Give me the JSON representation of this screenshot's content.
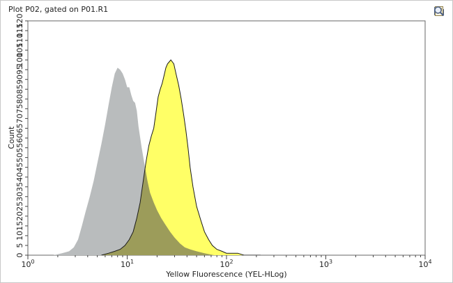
{
  "title": "Plot P02, gated on P01.R1",
  "toolbar": {
    "icons": [
      "zoom-gear-icon",
      "copy-icon",
      "color-overlay-icon",
      "export-icon",
      "print-icon",
      "page-setup-icon",
      "zoom-icon"
    ]
  },
  "colors": {
    "control_fill": "#b9bcbd",
    "sample_fill": "#ffff66",
    "sample_stroke": "#1a1a1a",
    "overlap_fill": "#9c9c5a"
  },
  "chart_data": {
    "type": "area",
    "title": "Plot P02, gated on P01.R1",
    "xlabel": "Yellow Fluorescence (YEL-HLog)",
    "ylabel": "Count",
    "xscale": "log",
    "xlim": [
      1,
      10000
    ],
    "ylim": [
      0,
      120
    ],
    "yticks": [
      0,
      5,
      10,
      15,
      20,
      25,
      30,
      35,
      40,
      45,
      50,
      55,
      60,
      65,
      70,
      75,
      80,
      85,
      90,
      95,
      100,
      105,
      110,
      115,
      120
    ],
    "xticks": [
      {
        "value": 1,
        "base": "10",
        "exp": "0"
      },
      {
        "value": 10,
        "base": "10",
        "exp": "1"
      },
      {
        "value": 100,
        "base": "10",
        "exp": "2"
      },
      {
        "value": 1000,
        "base": "10",
        "exp": "3"
      },
      {
        "value": 10000,
        "base": "10",
        "exp": "4"
      }
    ],
    "grid": false,
    "legend": "none",
    "series": [
      {
        "role": "control",
        "x": [
          1.8,
          2.2,
          2.6,
          2.9,
          3.2,
          3.5,
          3.8,
          4.2,
          4.6,
          5.0,
          5.5,
          6.0,
          6.5,
          7.0,
          7.5,
          8.0,
          8.5,
          9.0,
          9.5,
          10.0,
          10.5,
          11.0,
          11.5,
          12.0,
          12.5,
          13.0,
          14.0,
          15.0,
          16.0,
          17.0,
          18.5,
          20.0,
          22.0,
          24.0,
          27.0,
          30.0,
          34.0,
          38.0,
          43.0,
          50.0,
          60.0,
          75.0
        ],
        "y": [
          0,
          1,
          2,
          4,
          8,
          15,
          22,
          30,
          38,
          47,
          57,
          67,
          77,
          86,
          93,
          96,
          95,
          93,
          90,
          86,
          86,
          82,
          79,
          78,
          74,
          66,
          55,
          46,
          38,
          32,
          27,
          23,
          19,
          16,
          12,
          9,
          6,
          4,
          3,
          2,
          1,
          0
        ]
      },
      {
        "role": "sample",
        "x": [
          5.5,
          6.5,
          7.5,
          8.5,
          9.5,
          10.5,
          11.5,
          12.5,
          13.5,
          14.5,
          15.5,
          16.5,
          17.5,
          18.5,
          19.5,
          20.5,
          21.5,
          22.5,
          23.5,
          24.5,
          25.5,
          26.5,
          27.5,
          28.5,
          29.5,
          31.0,
          33.0,
          35.0,
          37.0,
          39.0,
          41.0,
          43.0,
          46.0,
          50.0,
          55.0,
          60.0,
          66.0,
          72.0,
          80.0,
          90.0,
          100.0,
          115.0,
          130.0,
          150.0,
          180.0,
          220.0
        ],
        "y": [
          0,
          1,
          2,
          3,
          5,
          8,
          12,
          19,
          27,
          38,
          48,
          56,
          61,
          65,
          73,
          81,
          85,
          88,
          92,
          96,
          98,
          99,
          100,
          99,
          98,
          93,
          87,
          80,
          72,
          64,
          55,
          45,
          35,
          25,
          18,
          12,
          8,
          5,
          3,
          2,
          1,
          1,
          1,
          0,
          0,
          0
        ]
      }
    ]
  }
}
